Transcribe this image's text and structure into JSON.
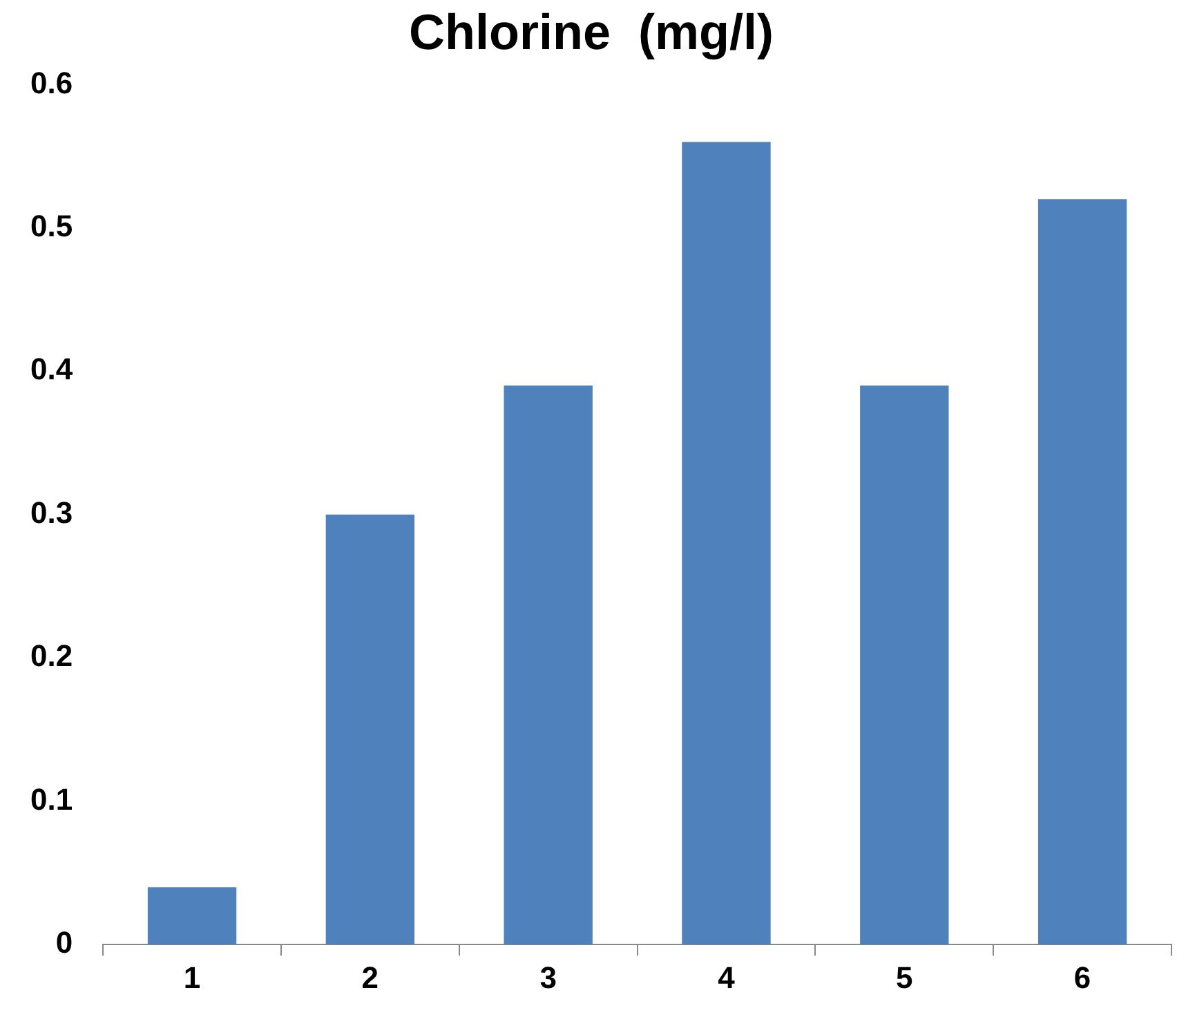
{
  "chart_data": {
    "type": "bar",
    "title": "Chlorine  (mg/l)",
    "categories": [
      "1",
      "2",
      "3",
      "4",
      "5",
      "6"
    ],
    "values": [
      0.04,
      0.3,
      0.39,
      0.56,
      0.39,
      0.52
    ],
    "color": "#4f81bd",
    "ylim": [
      0,
      0.6
    ],
    "yticks": [
      0,
      0.1,
      0.2,
      0.3,
      0.4,
      0.5,
      0.6
    ]
  }
}
